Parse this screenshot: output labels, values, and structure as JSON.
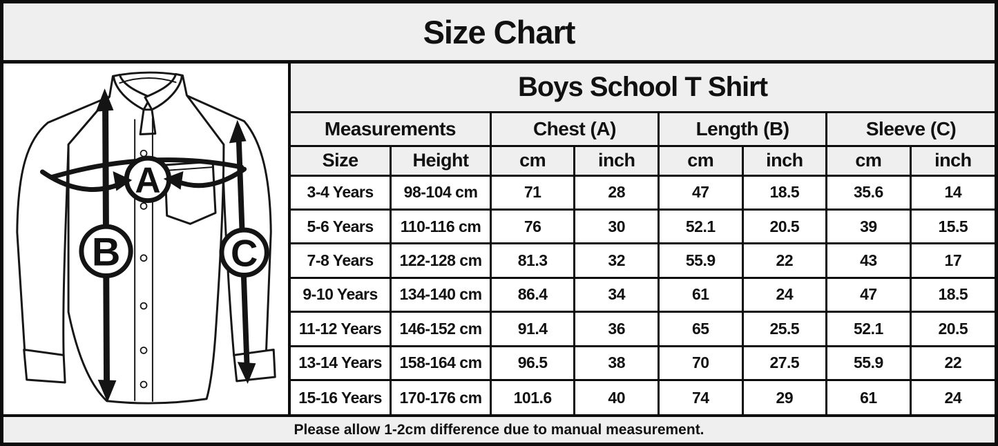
{
  "page_title": "Size Chart",
  "footer_note": "Please allow 1-2cm difference due to manual measurement.",
  "diagram": {
    "description": "line drawing of a long-sleeve boys school shirt with measurement arrows",
    "measure_labels": {
      "chest": "A",
      "length": "B",
      "sleeve": "C"
    }
  },
  "table": {
    "title": "Boys School T Shirt",
    "group_headers": [
      {
        "label": "Measurements",
        "span": 2
      },
      {
        "label": "Chest (A)",
        "span": 2
      },
      {
        "label": "Length (B)",
        "span": 2
      },
      {
        "label": "Sleeve (C)",
        "span": 2
      }
    ],
    "column_headers": [
      "Size",
      "Height",
      "cm",
      "inch",
      "cm",
      "inch",
      "cm",
      "inch"
    ],
    "rows": [
      [
        "3-4 Years",
        "98-104 cm",
        "71",
        "28",
        "47",
        "18.5",
        "35.6",
        "14"
      ],
      [
        "5-6 Years",
        "110-116 cm",
        "76",
        "30",
        "52.1",
        "20.5",
        "39",
        "15.5"
      ],
      [
        "7-8 Years",
        "122-128 cm",
        "81.3",
        "32",
        "55.9",
        "22",
        "43",
        "17"
      ],
      [
        "9-10 Years",
        "134-140 cm",
        "86.4",
        "34",
        "61",
        "24",
        "47",
        "18.5"
      ],
      [
        "11-12 Years",
        "146-152 cm",
        "91.4",
        "36",
        "65",
        "25.5",
        "52.1",
        "20.5"
      ],
      [
        "13-14 Years",
        "158-164 cm",
        "96.5",
        "38",
        "70",
        "27.5",
        "55.9",
        "22"
      ],
      [
        "15-16 Years",
        "170-176 cm",
        "101.6",
        "40",
        "74",
        "29",
        "61",
        "24"
      ]
    ]
  },
  "colors": {
    "border": "#0d0d0d",
    "header_bg": "#efefef",
    "cell_bg": "#ffffff",
    "text": "#111111",
    "panel_bg": "#ffffff"
  }
}
